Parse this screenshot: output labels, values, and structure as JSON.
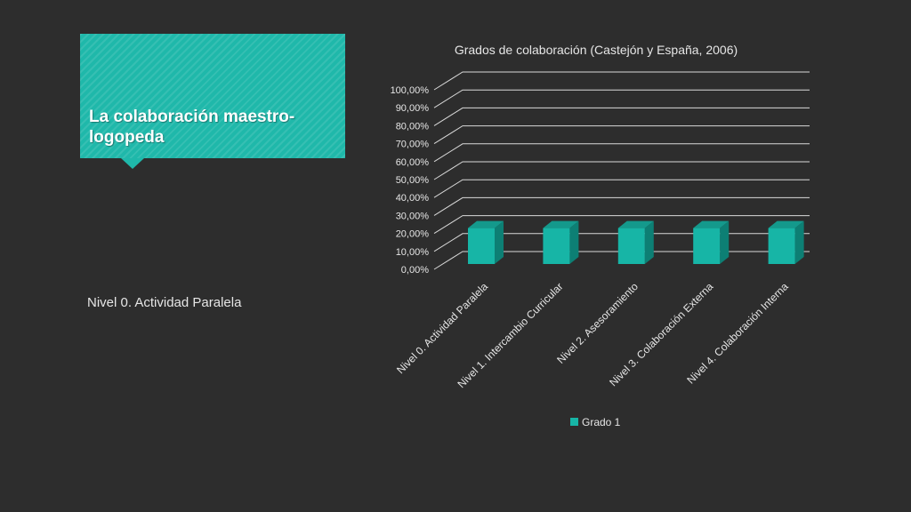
{
  "slide": {
    "title": "La colaboración maestro-logopeda",
    "body_text": "Nivel 0. Actividad Paralela",
    "accent_color": "#1fb8aa",
    "background_color": "#2d2d2d"
  },
  "chart_data": {
    "type": "bar",
    "style": "3d-column",
    "title": "Grados de colaboración (Castejón y España, 2006)",
    "xlabel": "",
    "ylabel": "",
    "categories": [
      "Nivel 0. Actividad Paralela",
      "Nivel 1. Intercambio Curricular",
      "Nivel 2. Asesoramiento",
      "Nivel 3. Colaboración Externa",
      "Nivel 4. Colaboración Interna"
    ],
    "series": [
      {
        "name": "Grado 1",
        "values": [
          0.2,
          0.2,
          0.2,
          0.2,
          0.2
        ],
        "color": "#17b5a6",
        "side_color": "#0d7f74",
        "top_color": "#14998c"
      }
    ],
    "yticks": [
      "0,00%",
      "10,00%",
      "20,00%",
      "30,00%",
      "40,00%",
      "50,00%",
      "60,00%",
      "70,00%",
      "80,00%",
      "90,00%",
      "100,00%"
    ],
    "ylim": [
      0,
      1.0
    ],
    "grid": true,
    "legend_position": "bottom"
  }
}
